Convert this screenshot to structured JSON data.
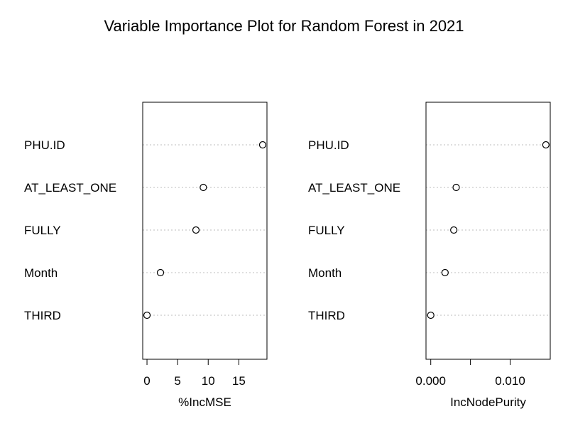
{
  "chart_data": {
    "type": "scatter",
    "title": "Variable Importance Plot for Random Forest in 2021",
    "variables": [
      "PHU.ID",
      "AT_LEAST_ONE",
      "FULLY",
      "Month",
      "THIRD"
    ],
    "panels": [
      {
        "xlabel": "%IncMSE",
        "values": [
          18.9,
          9.2,
          8.0,
          2.2,
          0.0
        ],
        "xlim": [
          -0.7,
          19.6
        ],
        "ticks": [
          0,
          5,
          10,
          15
        ],
        "tick_labels": [
          "0",
          "5",
          "10",
          "15"
        ]
      },
      {
        "xlabel": "IncNodePurity",
        "values": [
          0.0145,
          0.0032,
          0.0029,
          0.0018,
          0.0
        ],
        "xlim": [
          -0.0006,
          0.01505
        ],
        "ticks": [
          0.0,
          0.005,
          0.01
        ],
        "tick_labels": [
          "0.000",
          "",
          "0.010"
        ]
      }
    ],
    "grid": "dotted horizontal per variable",
    "marker": "open circle"
  }
}
